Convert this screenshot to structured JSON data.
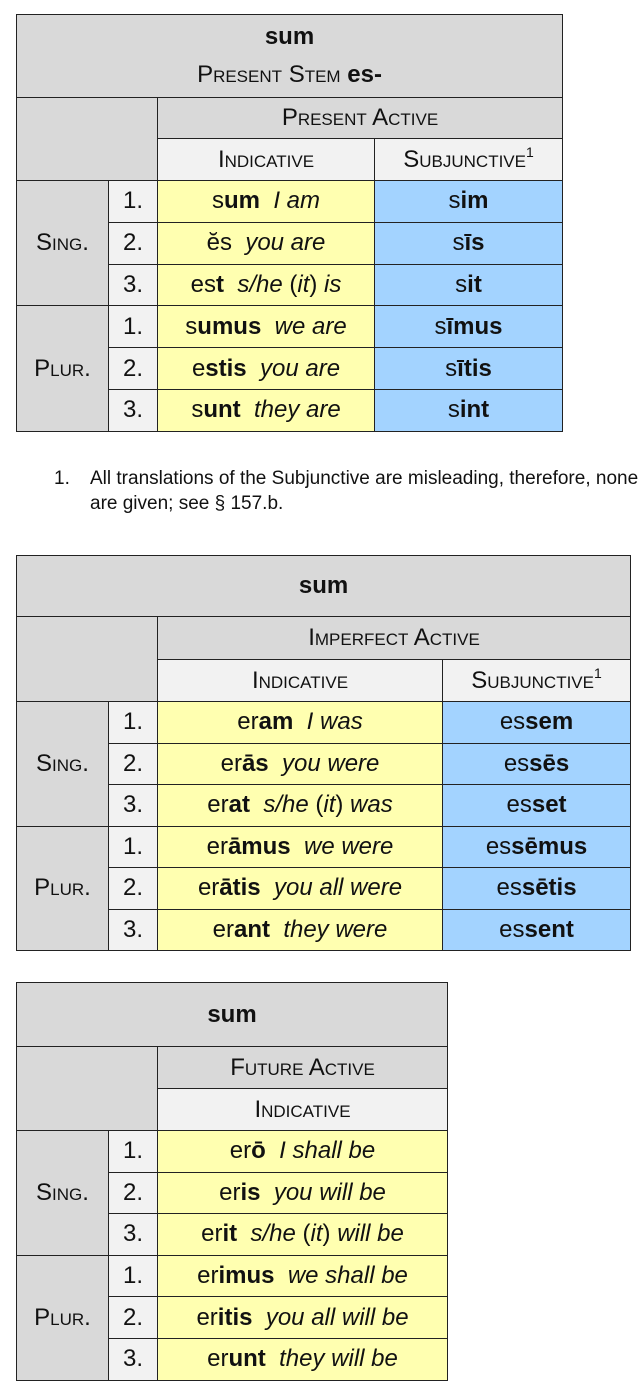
{
  "colors": {
    "header_gray": "#d9d9d9",
    "subheader_light": "#f2f2f2",
    "indicative_yellow": "#ffffb0",
    "subjunctive_blue": "#a3d3ff"
  },
  "tables": [
    {
      "title": "sum",
      "subtitle": {
        "label": "Present Stem",
        "stem": "es-"
      },
      "tense": "Present Active",
      "moods": [
        {
          "label": "Indicative",
          "sup": ""
        },
        {
          "label": "Subjunctive",
          "sup": "1"
        }
      ],
      "numbers": [
        "Sing.",
        "Plur."
      ],
      "persons": [
        "1.",
        "2.",
        "3.",
        "1.",
        "2.",
        "3."
      ],
      "indicative": [
        {
          "stem": "s",
          "ending": "um",
          "gloss": [
            {
              "t": "I am",
              "i": true
            }
          ]
        },
        {
          "stem": "ĕs",
          "ending": "",
          "gloss": [
            {
              "t": "you are",
              "i": true
            }
          ]
        },
        {
          "stem": "es",
          "ending": "t",
          "gloss": [
            {
              "t": "s/he",
              "i": true
            },
            {
              "t": " (",
              "i": false
            },
            {
              "t": "it",
              "i": true
            },
            {
              "t": ") ",
              "i": false
            },
            {
              "t": "is",
              "i": true
            }
          ]
        },
        {
          "stem": "s",
          "ending": "umus",
          "gloss": [
            {
              "t": "we are",
              "i": true
            }
          ]
        },
        {
          "stem": "e",
          "ending": "stis",
          "gloss": [
            {
              "t": "you are",
              "i": true
            }
          ]
        },
        {
          "stem": "s",
          "ending": "unt",
          "gloss": [
            {
              "t": "they are",
              "i": true
            }
          ]
        }
      ],
      "subjunctive": [
        {
          "stem": "s",
          "ending": "im"
        },
        {
          "stem": "s",
          "ending": "īs"
        },
        {
          "stem": "s",
          "ending": "it"
        },
        {
          "stem": "s",
          "ending": "īmus"
        },
        {
          "stem": "s",
          "ending": "ītis"
        },
        {
          "stem": "s",
          "ending": "int"
        }
      ]
    },
    {
      "title": "sum",
      "tense": "Imperfect Active",
      "moods": [
        {
          "label": "Indicative",
          "sup": ""
        },
        {
          "label": "Subjunctive",
          "sup": "1"
        }
      ],
      "numbers": [
        "Sing.",
        "Plur."
      ],
      "persons": [
        "1.",
        "2.",
        "3.",
        "1.",
        "2.",
        "3."
      ],
      "indicative": [
        {
          "stem": "er",
          "ending": "am",
          "gloss": [
            {
              "t": "I was",
              "i": true
            }
          ]
        },
        {
          "stem": "er",
          "ending": "ās",
          "gloss": [
            {
              "t": "you were",
              "i": true
            }
          ]
        },
        {
          "stem": "er",
          "ending": "at",
          "gloss": [
            {
              "t": "s/he",
              "i": true
            },
            {
              "t": " (",
              "i": false
            },
            {
              "t": "it",
              "i": true
            },
            {
              "t": ") ",
              "i": false
            },
            {
              "t": "was",
              "i": true
            }
          ]
        },
        {
          "stem": "er",
          "ending": "āmus",
          "gloss": [
            {
              "t": "we were",
              "i": true
            }
          ]
        },
        {
          "stem": "er",
          "ending": "ātis",
          "gloss": [
            {
              "t": "you all  were",
              "i": true
            }
          ]
        },
        {
          "stem": "er",
          "ending": "ant",
          "gloss": [
            {
              "t": "they were",
              "i": true
            }
          ]
        }
      ],
      "subjunctive": [
        {
          "stem": "es",
          "ending": "sem"
        },
        {
          "stem": "es",
          "ending": "sēs"
        },
        {
          "stem": "es",
          "ending": "set"
        },
        {
          "stem": "es",
          "ending": "sēmus"
        },
        {
          "stem": "es",
          "ending": "sētis"
        },
        {
          "stem": "es",
          "ending": "sent"
        }
      ]
    },
    {
      "title": "sum",
      "tense": "Future Active",
      "moods": [
        {
          "label": "Indicative",
          "sup": ""
        }
      ],
      "numbers": [
        "Sing.",
        "Plur."
      ],
      "persons": [
        "1.",
        "2.",
        "3.",
        "1.",
        "2.",
        "3."
      ],
      "indicative": [
        {
          "stem": "er",
          "ending": "ō",
          "gloss": [
            {
              "t": "I shall be",
              "i": true
            }
          ]
        },
        {
          "stem": "er",
          "ending": "is",
          "gloss": [
            {
              "t": "you will be",
              "i": true
            }
          ]
        },
        {
          "stem": "er",
          "ending": "it",
          "gloss": [
            {
              "t": "s/he",
              "i": true
            },
            {
              "t": " (",
              "i": false
            },
            {
              "t": "it",
              "i": true
            },
            {
              "t": ") ",
              "i": false
            },
            {
              "t": "will be",
              "i": true
            }
          ]
        },
        {
          "stem": "er",
          "ending": "imus",
          "gloss": [
            {
              "t": "we shall be",
              "i": true
            }
          ]
        },
        {
          "stem": "er",
          "ending": "itis",
          "gloss": [
            {
              "t": "you all will be",
              "i": true
            }
          ]
        },
        {
          "stem": "er",
          "ending": "unt",
          "gloss": [
            {
              "t": "they will be",
              "i": true
            }
          ]
        }
      ]
    }
  ],
  "footnote": {
    "number": "1.",
    "text": "All translations of the Subjunctive are misleading, therefore, none are given; see § 157.b."
  }
}
